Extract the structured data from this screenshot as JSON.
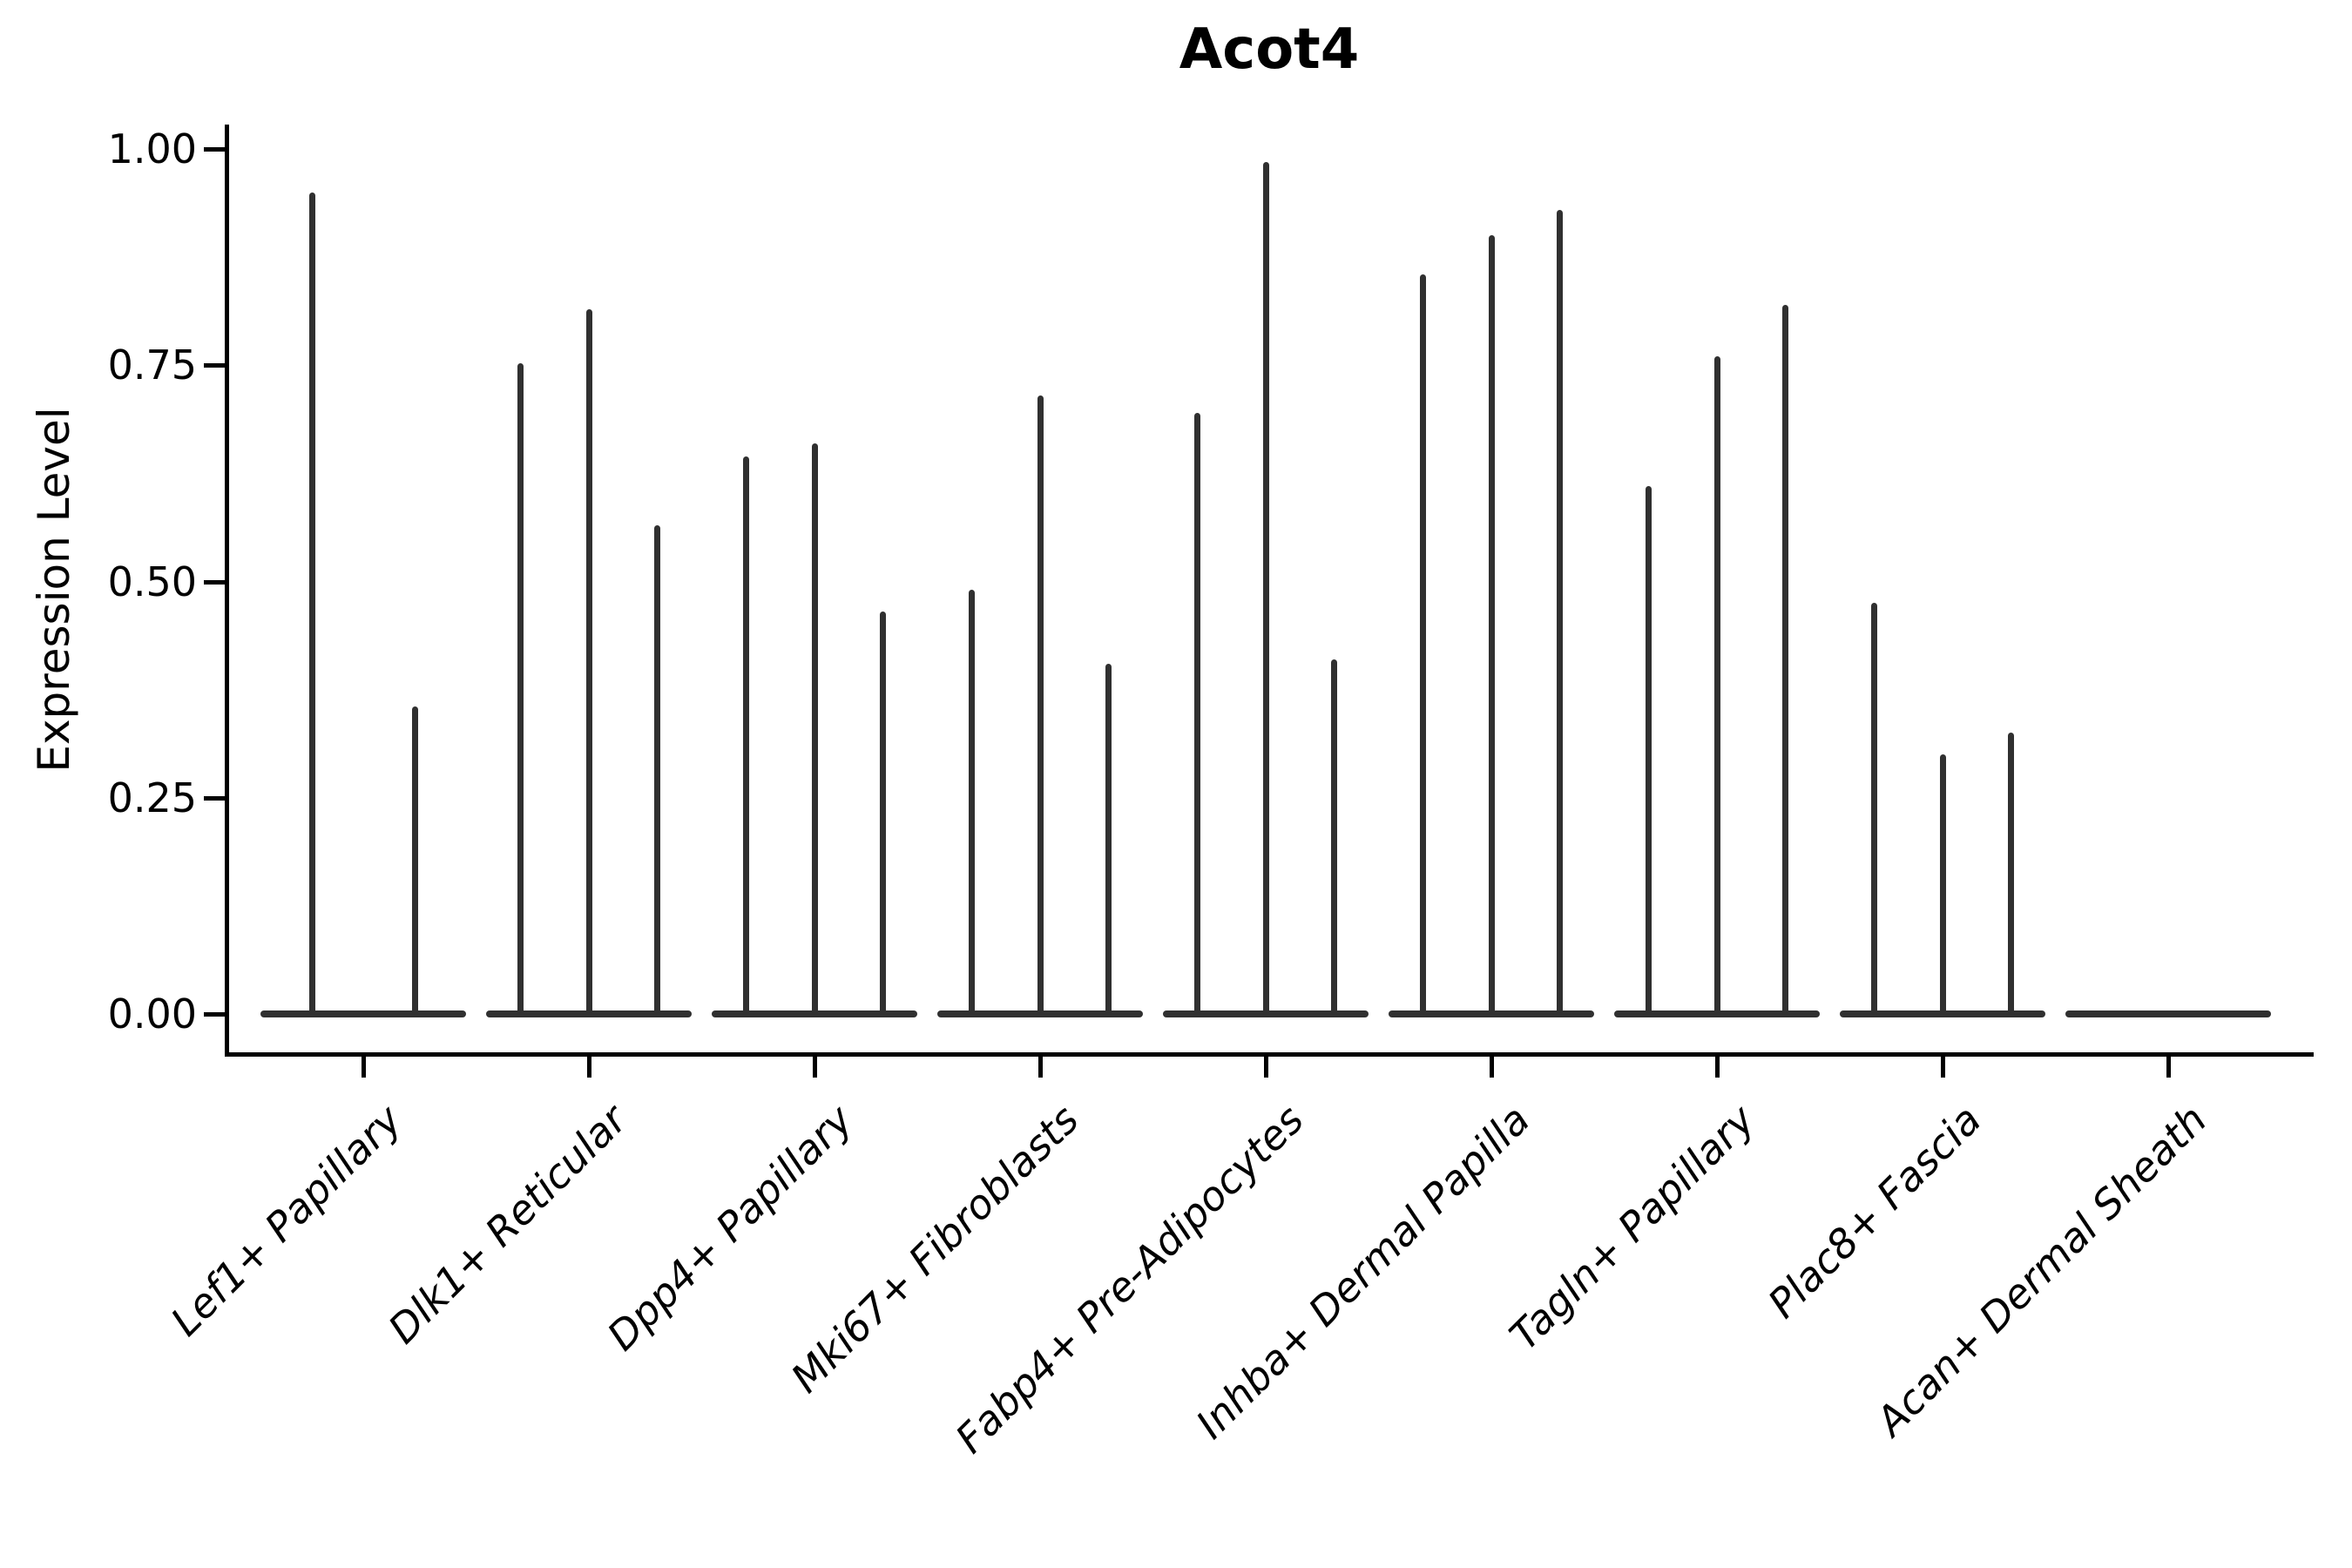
{
  "title": "Acot4",
  "colors": {
    "background": "#ffffff",
    "axis": "#000000",
    "violin": "#303030",
    "text": "#000000"
  },
  "chart_data": {
    "type": "violin",
    "title": "Acot4",
    "xlabel": "",
    "ylabel": "Expression Level",
    "ylim": [
      0,
      1.03
    ],
    "yticks": [
      0,
      0.25,
      0.5,
      0.75,
      1.0
    ],
    "ytick_labels": [
      "0.00",
      "0.25",
      "0.50",
      "0.75",
      "1.00"
    ],
    "grid": false,
    "legend": "none",
    "description": "Each category shows 2-3 ultra-thin collapsed violins: a flat body at expression 0 with a narrow spike; spike_peaks are the maximum expression level reached by each violin in left-to-right order. Empty-looking category Acan+ Dermal Sheath is fully flat at 0.",
    "categories": [
      "Lef1+ Papillary",
      "Dlk1+ Reticular",
      "Dpp4+ Papillary",
      "Mki67+ Fibroblasts",
      "Fabp4+ Pre-Adipocytes",
      "Inhba+ Dermal Papilla",
      "Tagln+ Papillary",
      "Plac8+ Fascia",
      "Acan+ Dermal Sheath"
    ],
    "groups": [
      {
        "category": "Lef1+ Papillary",
        "spike_peaks": [
          0.95,
          0.355
        ]
      },
      {
        "category": "Dlk1+ Reticular",
        "spike_peaks": [
          0.752,
          0.815,
          0.565
        ]
      },
      {
        "category": "Dpp4+ Papillary",
        "spike_peaks": [
          0.645,
          0.66,
          0.465
        ]
      },
      {
        "category": "Mki67+ Fibroblasts",
        "spike_peaks": [
          0.49,
          0.715,
          0.405
        ]
      },
      {
        "category": "Fabp4+ Pre-Adipocytes",
        "spike_peaks": [
          0.695,
          0.985,
          0.41
        ]
      },
      {
        "category": "Inhba+ Dermal Papilla",
        "spike_peaks": [
          0.855,
          0.9,
          0.93
        ]
      },
      {
        "category": "Tagln+ Papillary",
        "spike_peaks": [
          0.61,
          0.76,
          0.82
        ]
      },
      {
        "category": "Plac8+ Fascia",
        "spike_peaks": [
          0.475,
          0.3,
          0.325
        ]
      },
      {
        "category": "Acan+ Dermal Sheath",
        "spike_peaks": [
          0,
          0,
          0
        ]
      }
    ]
  }
}
